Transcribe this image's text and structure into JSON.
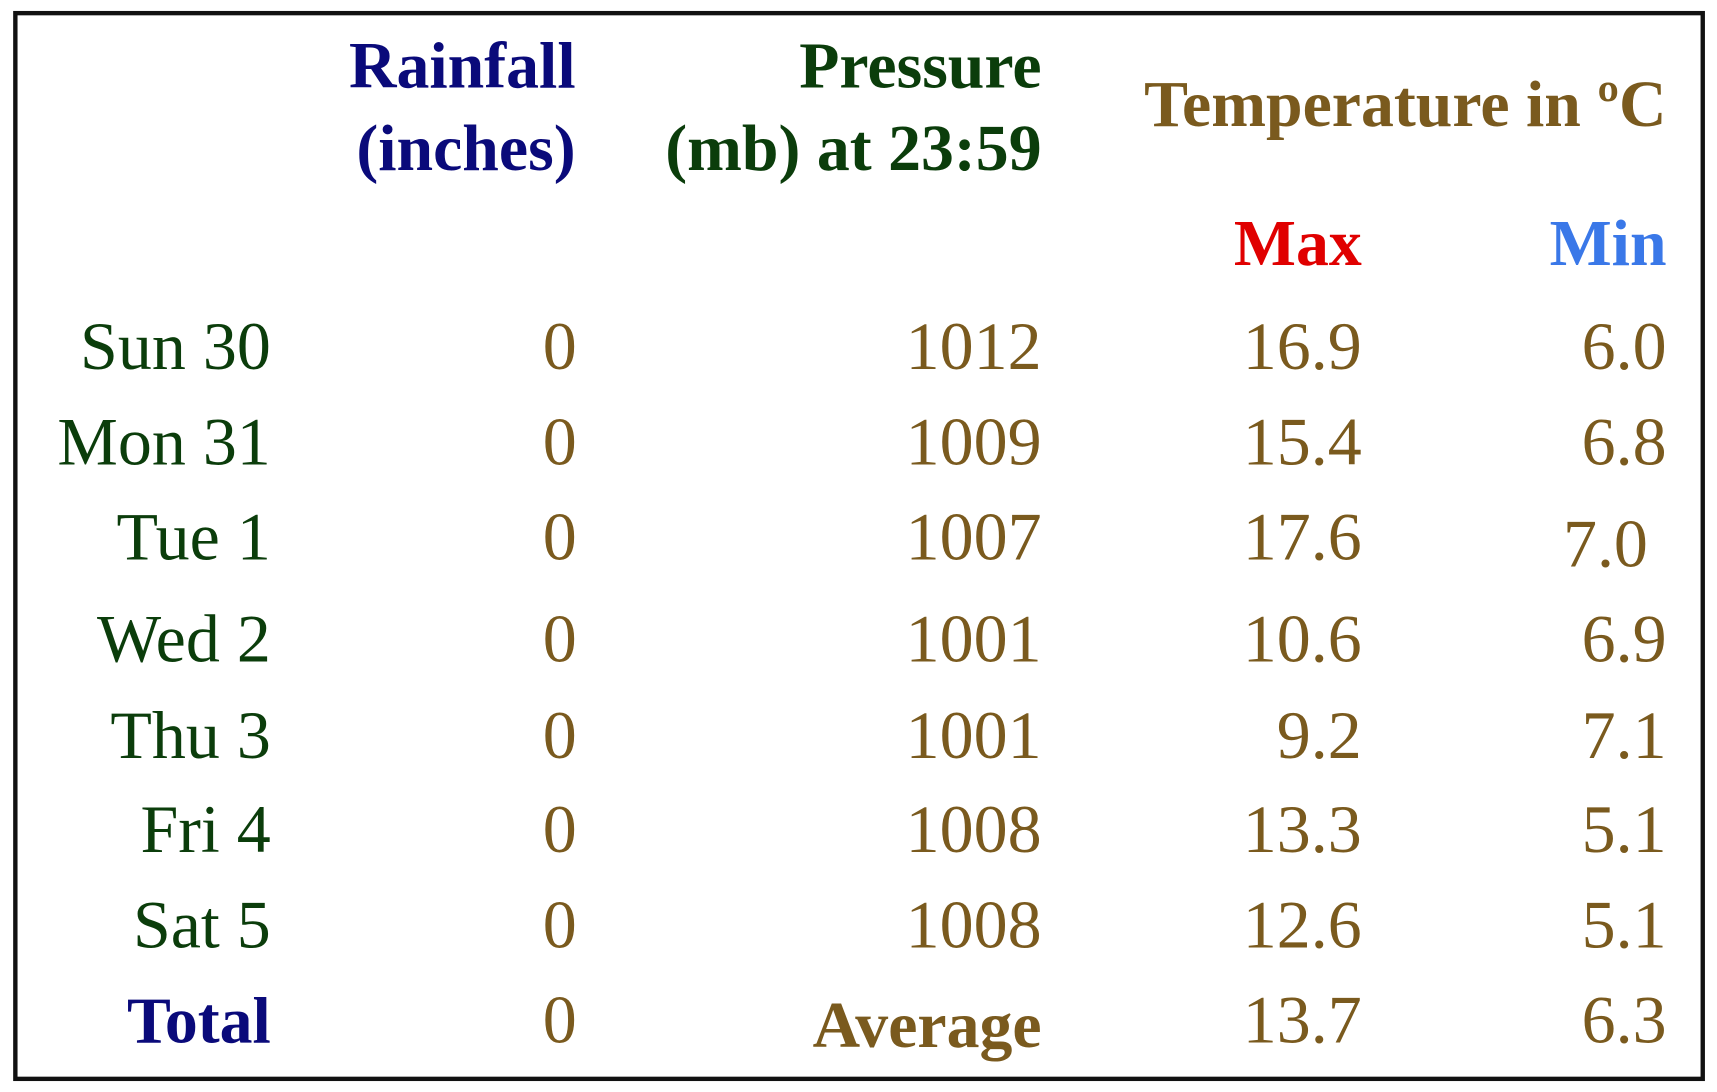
{
  "header": {
    "rainfall": [
      "Rainfall",
      "(inches)"
    ],
    "pressure": [
      "Pressure",
      "(mb) at 23:59"
    ],
    "temperature": "Temperature in ºC",
    "max": "Max",
    "min": "Min"
  },
  "rows": [
    {
      "day": "Sun 30",
      "rainfall": "0",
      "pressure": "1012",
      "max": "16.9",
      "min": "6.0"
    },
    {
      "day": "Mon 31",
      "rainfall": "0",
      "pressure": "1009",
      "max": "15.4",
      "min": "6.8"
    },
    {
      "day": "Tue 1",
      "rainfall": "0",
      "pressure": "1007",
      "max": "17.6",
      "min": "7.0"
    },
    {
      "day": "Wed 2",
      "rainfall": "0",
      "pressure": "1001",
      "max": "10.6",
      "min": "6.9"
    },
    {
      "day": "Thu 3",
      "rainfall": "0",
      "pressure": "1001",
      "max": "9.2",
      "min": "7.1"
    },
    {
      "day": "Fri 4",
      "rainfall": "0",
      "pressure": "1008",
      "max": "13.3",
      "min": "5.1"
    },
    {
      "day": "Sat 5",
      "rainfall": "0",
      "pressure": "1008",
      "max": "12.6",
      "min": "5.1"
    }
  ],
  "footer": {
    "label": "Total",
    "rainfall": "0",
    "pressure_label": "Average",
    "max": "13.7",
    "min": "6.3"
  }
}
